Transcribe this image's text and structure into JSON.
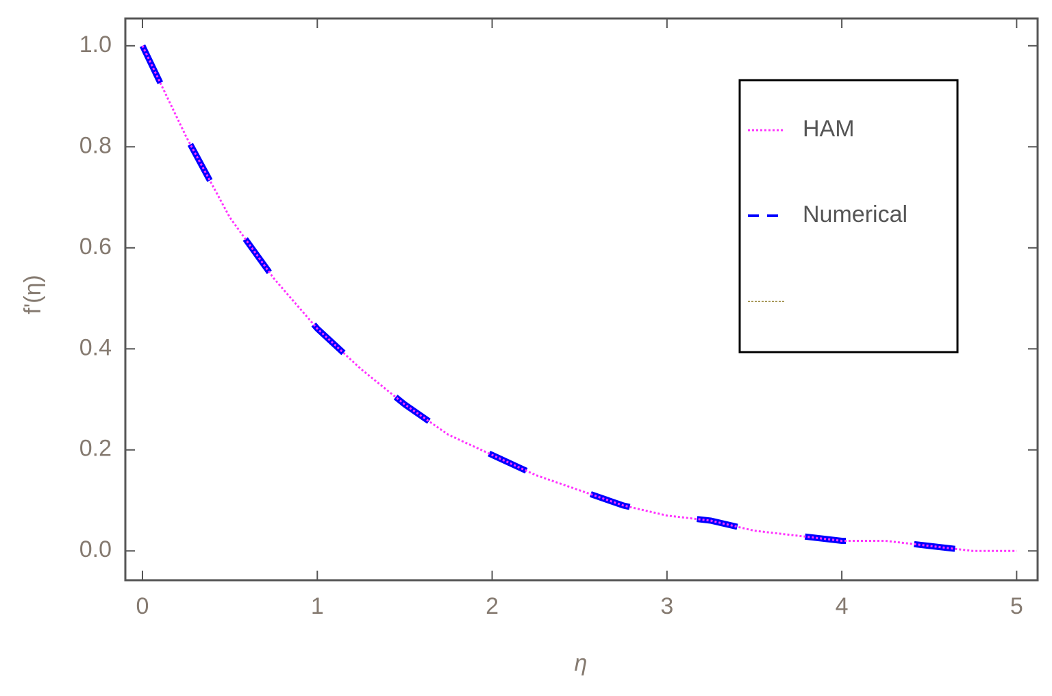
{
  "chart_data": {
    "type": "line",
    "x_label": "η",
    "y_label": "f'(η)",
    "x": [
      0,
      0.25,
      0.5,
      0.75,
      1,
      1.25,
      1.5,
      1.75,
      2,
      2.25,
      2.5,
      2.75,
      3,
      3.25,
      3.5,
      3.75,
      4,
      4.25,
      4.5,
      4.75,
      5
    ],
    "series": [
      {
        "name": "HAM",
        "color": "#ff33ff",
        "style": "dotted",
        "values": [
          1.0,
          0.82,
          0.66,
          0.54,
          0.44,
          0.36,
          0.29,
          0.23,
          0.19,
          0.15,
          0.12,
          0.09,
          0.07,
          0.06,
          0.04,
          0.03,
          0.02,
          0.02,
          0.01,
          0.0,
          0.0
        ]
      },
      {
        "name": "Numerical",
        "color": "#0000ff",
        "style": "dashed",
        "values": [
          1.0,
          0.82,
          0.66,
          0.54,
          0.44,
          0.36,
          0.29,
          0.23,
          0.19,
          0.15,
          0.12,
          0.09,
          0.07,
          0.06,
          0.04,
          0.03,
          0.02,
          0.02,
          0.01,
          0.0,
          0.0
        ]
      }
    ],
    "xlim": [
      -0.098,
      5.12
    ],
    "ylim": [
      -0.058,
      1.054
    ],
    "xticks": [
      0,
      1,
      2,
      3,
      4,
      5
    ],
    "yticks": [
      {
        "value": 0,
        "label": "0.0"
      },
      {
        "value": 0.2,
        "label": "0.2"
      },
      {
        "value": 0.4,
        "label": "0.4"
      },
      {
        "value": 0.6,
        "label": "0.6"
      },
      {
        "value": 0.8,
        "label": "0.8"
      },
      {
        "value": 1,
        "label": "1.0"
      }
    ]
  }
}
